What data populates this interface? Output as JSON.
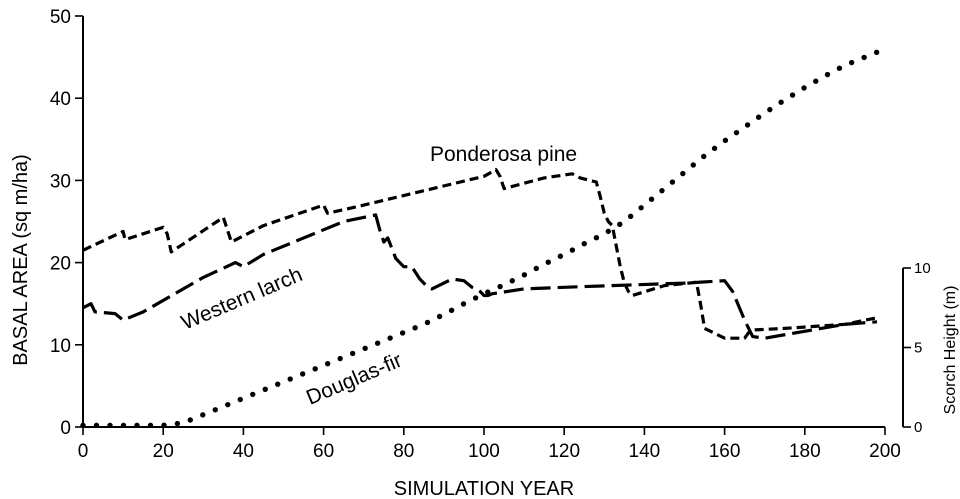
{
  "chart_data": {
    "type": "line",
    "xlabel": "SIMULATION YEAR",
    "ylabel": "BASAL AREA (sq m/ha)",
    "y2label": "Scorch Height (m)",
    "xlim": [
      0,
      200
    ],
    "ylim": [
      0,
      50
    ],
    "y2lim": [
      0,
      10
    ],
    "xticks": [
      0,
      20,
      40,
      60,
      80,
      100,
      120,
      140,
      160,
      180,
      200
    ],
    "yticks": [
      0,
      10,
      20,
      30,
      40,
      50
    ],
    "y2ticks": [
      0,
      5,
      10
    ],
    "grid": false,
    "series": [
      {
        "name": "Ponderosa pine",
        "style": "short-dash",
        "x": [
          0,
          10,
          10.5,
          20,
          21,
          22,
          35,
          36,
          37,
          45,
          60,
          61,
          70,
          100,
          103,
          104,
          105,
          115,
          122,
          124,
          128,
          129,
          130,
          131,
          132,
          133,
          134,
          135,
          136,
          137,
          145,
          153,
          154,
          155,
          160,
          165,
          166,
          167,
          175,
          190,
          198
        ],
        "y": [
          21.5,
          23.8,
          22.8,
          24.3,
          23.5,
          21.3,
          25.5,
          24.0,
          22.5,
          24.5,
          27.0,
          26.0,
          27.0,
          30.5,
          31.3,
          30.5,
          29.0,
          30.3,
          30.8,
          30.3,
          29.8,
          28.0,
          26.0,
          25.0,
          24.5,
          22.0,
          19.5,
          17.5,
          16.5,
          16.0,
          17.2,
          17.6,
          15.0,
          12.0,
          10.8,
          10.8,
          11.5,
          11.8,
          12.0,
          12.5,
          13.3
        ]
      },
      {
        "name": "Western larch",
        "style": "long-dash",
        "x": [
          0,
          2,
          3,
          8,
          10,
          15,
          30,
          38,
          40,
          45,
          65,
          73,
          74,
          75,
          76,
          78,
          80,
          82,
          84,
          86,
          87,
          90,
          92,
          95,
          97,
          98,
          99,
          100,
          101,
          102,
          110,
          120,
          150,
          160,
          162,
          165,
          167,
          170,
          190,
          198
        ],
        "y": [
          14.5,
          15.0,
          14.0,
          13.8,
          13.0,
          14.0,
          18.2,
          20.0,
          19.5,
          21.0,
          25.0,
          25.8,
          24.0,
          22.5,
          23.0,
          20.5,
          19.5,
          19.5,
          18.0,
          17.0,
          16.8,
          17.5,
          18.0,
          17.8,
          17.0,
          16.8,
          16.5,
          16.0,
          16.0,
          16.2,
          16.8,
          17.0,
          17.5,
          17.8,
          16.5,
          13.0,
          11.0,
          10.8,
          12.5,
          12.8
        ]
      },
      {
        "name": "Douglas-fir",
        "style": "dotted",
        "x": [
          0,
          5,
          10,
          15,
          20,
          25,
          30,
          35,
          40,
          45,
          50,
          55,
          60,
          65,
          70,
          75,
          80,
          85,
          90,
          95,
          100,
          105,
          110,
          115,
          120,
          125,
          130,
          135,
          140,
          145,
          150,
          155,
          160,
          165,
          170,
          175,
          180,
          185,
          190,
          195,
          200
        ],
        "y": [
          0.2,
          0.2,
          0.2,
          0.2,
          0.2,
          0.5,
          1.5,
          2.5,
          3.5,
          4.5,
          5.5,
          6.5,
          7.5,
          8.5,
          9.5,
          10.5,
          11.5,
          12.5,
          13.7,
          15.0,
          16.2,
          17.3,
          18.5,
          19.8,
          21.0,
          22.3,
          23.5,
          25.0,
          27.0,
          29.0,
          31.0,
          33.0,
          34.8,
          36.5,
          38.2,
          39.8,
          41.3,
          42.7,
          44.0,
          45.0,
          46.0
        ]
      }
    ]
  }
}
